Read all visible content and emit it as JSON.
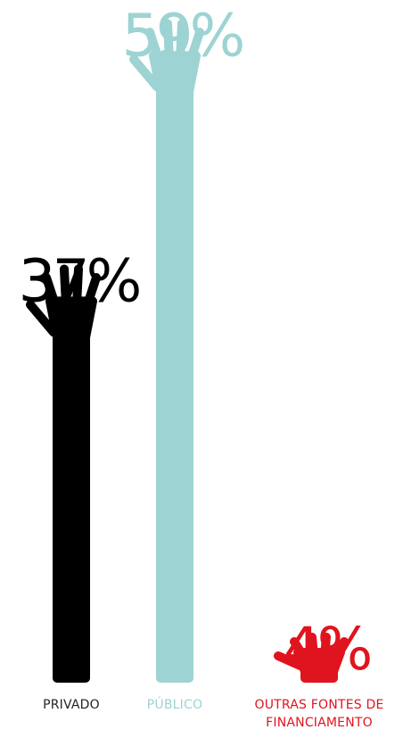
{
  "chart_data": {
    "type": "bar",
    "categories": [
      "PRIVADO",
      "PÚBLICO",
      "OUTRAS FONTES DE FINANCIAMENTO"
    ],
    "values": [
      37,
      59,
      4
    ],
    "value_labels": [
      "37%",
      "59%",
      "4%"
    ],
    "colors": [
      "#000000",
      "#9dd3d3",
      "#e0141e"
    ]
  }
}
